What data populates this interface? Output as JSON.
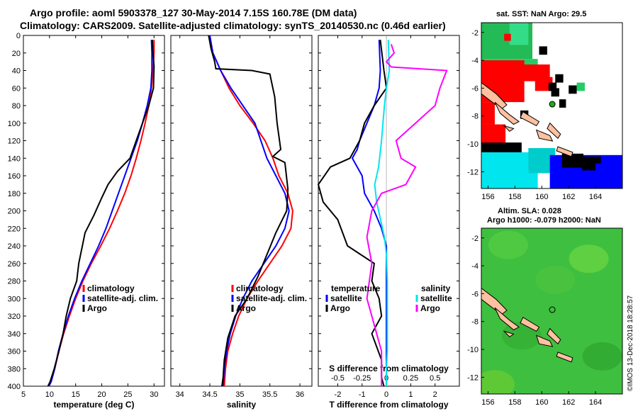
{
  "header": {
    "title_line1": "Argo profile: aoml 5903378_127 30-May-2014 7.15S 160.78E (DM data)",
    "title_line2": "Climatology: CARS2009. Satellite-adjusted climatology: synTS_20140530.nc (0.46d earlier)"
  },
  "colors": {
    "climatology": "#ff0000",
    "satellite": "#0000ff",
    "argo": "#000000",
    "sal_diff": "#ff00ff",
    "sat_diff": "#00e5ee"
  },
  "chart_data": [
    {
      "type": "line",
      "xlabel": "temperature (deg C)",
      "xlim": [
        5,
        32
      ],
      "xticks": [
        5,
        10,
        15,
        20,
        25,
        30
      ],
      "ylim": [
        0,
        400
      ],
      "yticks": [
        0,
        20,
        40,
        60,
        80,
        100,
        120,
        140,
        160,
        180,
        200,
        220,
        240,
        260,
        280,
        300,
        320,
        340,
        360,
        380,
        400
      ],
      "legend": [
        "climatology",
        "satellite-adj. clim.",
        "Argo"
      ],
      "series": [
        {
          "name": "climatology",
          "color": "#ff0000",
          "x": [
            30.0,
            30.0,
            29.8,
            29.5,
            29.0,
            28.3,
            27.5,
            26.6,
            25.6,
            24.4,
            23.0,
            21.5,
            19.8,
            18.0,
            16.4,
            15.0,
            13.8,
            12.7,
            11.8,
            11.0,
            10.3,
            9.8
          ],
          "y": [
            5,
            20,
            40,
            60,
            80,
            100,
            120,
            140,
            160,
            180,
            200,
            220,
            240,
            260,
            280,
            300,
            320,
            340,
            360,
            380,
            395,
            400
          ]
        },
        {
          "name": "satellite-adj. clim.",
          "color": "#0000ff",
          "x": [
            29.5,
            29.6,
            29.6,
            29.4,
            28.7,
            27.8,
            26.8,
            25.6,
            24.4,
            23.2,
            22.0,
            20.8,
            19.4,
            17.8,
            16.2,
            14.8,
            13.6,
            12.6,
            11.7,
            11.0,
            10.3,
            9.9
          ],
          "y": [
            5,
            20,
            40,
            60,
            80,
            100,
            120,
            140,
            160,
            180,
            200,
            220,
            240,
            260,
            280,
            300,
            320,
            340,
            360,
            380,
            395,
            400
          ]
        },
        {
          "name": "Argo",
          "color": "#000000",
          "x": [
            29.7,
            29.8,
            30.0,
            29.9,
            29.0,
            27.8,
            26.6,
            25.4,
            23.0,
            21.2,
            20.0,
            18.5,
            16.8,
            15.6,
            15.2,
            14.0,
            13.2,
            12.6,
            11.8,
            10.9,
            10.1,
            9.7
          ],
          "y": [
            5,
            20,
            35,
            60,
            80,
            100,
            120,
            140,
            155,
            170,
            185,
            205,
            225,
            260,
            280,
            300,
            320,
            340,
            360,
            380,
            395,
            400
          ]
        }
      ]
    },
    {
      "type": "line",
      "xlabel": "salinity",
      "xlim": [
        33.85,
        36.2
      ],
      "xticks": [
        34,
        34.5,
        35,
        35.5,
        36
      ],
      "ylim": [
        0,
        400
      ],
      "legend": [
        "climatology",
        "satellite-adj. clim.",
        "Argo"
      ],
      "series": [
        {
          "name": "climatology",
          "color": "#ff0000",
          "x": [
            34.48,
            34.55,
            34.68,
            34.82,
            35.0,
            35.22,
            35.42,
            35.55,
            35.65,
            35.8,
            35.88,
            35.85,
            35.7,
            35.5,
            35.3,
            35.12,
            34.98,
            34.88,
            34.8,
            34.76,
            34.74
          ],
          "y": [
            0,
            20,
            40,
            60,
            80,
            100,
            120,
            140,
            160,
            180,
            200,
            220,
            240,
            260,
            280,
            300,
            320,
            340,
            360,
            380,
            400
          ]
        },
        {
          "name": "satellite-adj. clim.",
          "color": "#0000ff",
          "x": [
            34.5,
            34.55,
            34.68,
            34.85,
            35.05,
            35.25,
            35.35,
            35.45,
            35.6,
            35.75,
            35.82,
            35.75,
            35.6,
            35.4,
            35.2,
            35.05,
            34.93,
            34.84,
            34.78,
            34.74,
            34.72
          ],
          "y": [
            0,
            20,
            40,
            60,
            80,
            100,
            120,
            140,
            160,
            180,
            200,
            220,
            240,
            260,
            280,
            300,
            320,
            340,
            360,
            380,
            400
          ]
        },
        {
          "name": "Argo",
          "color": "#000000",
          "x": [
            34.48,
            34.52,
            34.58,
            34.6,
            35.2,
            35.5,
            35.58,
            35.62,
            35.68,
            35.55,
            35.75,
            35.8,
            35.78,
            35.6,
            35.45,
            35.3,
            35.12,
            34.92,
            34.8,
            34.74,
            34.72,
            34.7
          ],
          "y": [
            0,
            15,
            30,
            38,
            40,
            44,
            70,
            100,
            130,
            138,
            145,
            175,
            200,
            225,
            250,
            275,
            300,
            320,
            345,
            370,
            390,
            400
          ]
        }
      ]
    },
    {
      "type": "line",
      "xlabel": "T difference from climatology",
      "top_axis_label": "S difference from climatology",
      "xlim": [
        -2.8,
        3.0
      ],
      "xticks": [
        -2,
        -1,
        0,
        1,
        2
      ],
      "top_xlim": [
        -0.7,
        0.75
      ],
      "top_xticks": [
        -0.5,
        -0.25,
        0,
        0.25,
        0.5
      ],
      "ylim": [
        0,
        400
      ],
      "legend_temperature": [
        "temperature",
        "satellite",
        "Argo"
      ],
      "legend_salinity": [
        "salinity",
        "satellite",
        "Argo"
      ],
      "series": [
        {
          "name": "T satellite",
          "color": "#0000ff",
          "x": [
            -0.3,
            -0.25,
            -0.3,
            -0.5,
            -0.8,
            -1.1,
            -1.2,
            -1.4,
            -1.0,
            -0.9,
            -0.5,
            -0.2,
            0.0,
            0.0,
            0.0,
            0.0,
            0.0,
            0.0,
            0.0,
            0.0
          ],
          "y": [
            5,
            40,
            60,
            80,
            100,
            120,
            130,
            140,
            160,
            180,
            200,
            220,
            240,
            260,
            280,
            300,
            320,
            340,
            360,
            400
          ]
        },
        {
          "name": "T Argo",
          "color": "#000000",
          "x": [
            -0.25,
            -0.1,
            -0.05,
            0.0,
            -0.5,
            -0.9,
            -1.1,
            -1.5,
            -2.3,
            -2.8,
            -2.6,
            -2.0,
            -1.6,
            -0.5,
            -0.6,
            -0.3,
            -0.2,
            -0.6,
            -0.2,
            -0.2,
            -0.1
          ],
          "y": [
            5,
            40,
            50,
            60,
            80,
            100,
            120,
            140,
            150,
            170,
            190,
            210,
            240,
            260,
            280,
            300,
            320,
            340,
            370,
            390,
            400
          ]
        },
        {
          "name": "S satellite",
          "color": "#00e5ee",
          "x": [
            0.02,
            0.03,
            0.0,
            -0.02,
            -0.05,
            -0.08,
            -0.12,
            -0.1,
            -0.06,
            -0.02,
            0.0,
            0.01,
            0.01,
            0.01,
            0.0,
            0.0
          ],
          "y": [
            5,
            40,
            60,
            80,
            120,
            150,
            170,
            190,
            210,
            230,
            250,
            280,
            320,
            360,
            380,
            400
          ]
        },
        {
          "name": "S Argo",
          "color": "#ff00ff",
          "x": [
            0.05,
            0.08,
            0.0,
            0.05,
            0.62,
            0.55,
            0.5,
            0.3,
            0.1,
            0.15,
            0.3,
            0.2,
            -0.05,
            -0.15,
            -0.2,
            -0.15,
            -0.2,
            -0.15,
            -0.1,
            -0.05,
            -0.05
          ],
          "y": [
            10,
            20,
            30,
            36,
            40,
            60,
            80,
            100,
            120,
            140,
            150,
            170,
            180,
            200,
            230,
            260,
            300,
            320,
            340,
            360,
            400
          ]
        }
      ]
    },
    {
      "type": "heatmap",
      "title": "sat. SST: NaN Argo: 29.5",
      "xticks": [
        156,
        158,
        160,
        162,
        164
      ],
      "yticks": [
        -2,
        -4,
        -6,
        -8,
        -10,
        -12
      ],
      "xlim": [
        155.5,
        166
      ],
      "ylim": [
        -13.2,
        -1.3
      ]
    },
    {
      "type": "heatmap",
      "title_line1": "Altim. SLA: 0.028",
      "title_line2": "Argo h1000: -0.079 h2000: NaN",
      "xticks": [
        156,
        158,
        160,
        162,
        164
      ],
      "yticks": [
        -2,
        -4,
        -6,
        -8,
        -10,
        -12
      ],
      "xlim": [
        155.5,
        166
      ],
      "ylim": [
        -13.2,
        -1.3
      ]
    }
  ],
  "credit": "©IMOS 13-Dec-2018 18:28:57"
}
